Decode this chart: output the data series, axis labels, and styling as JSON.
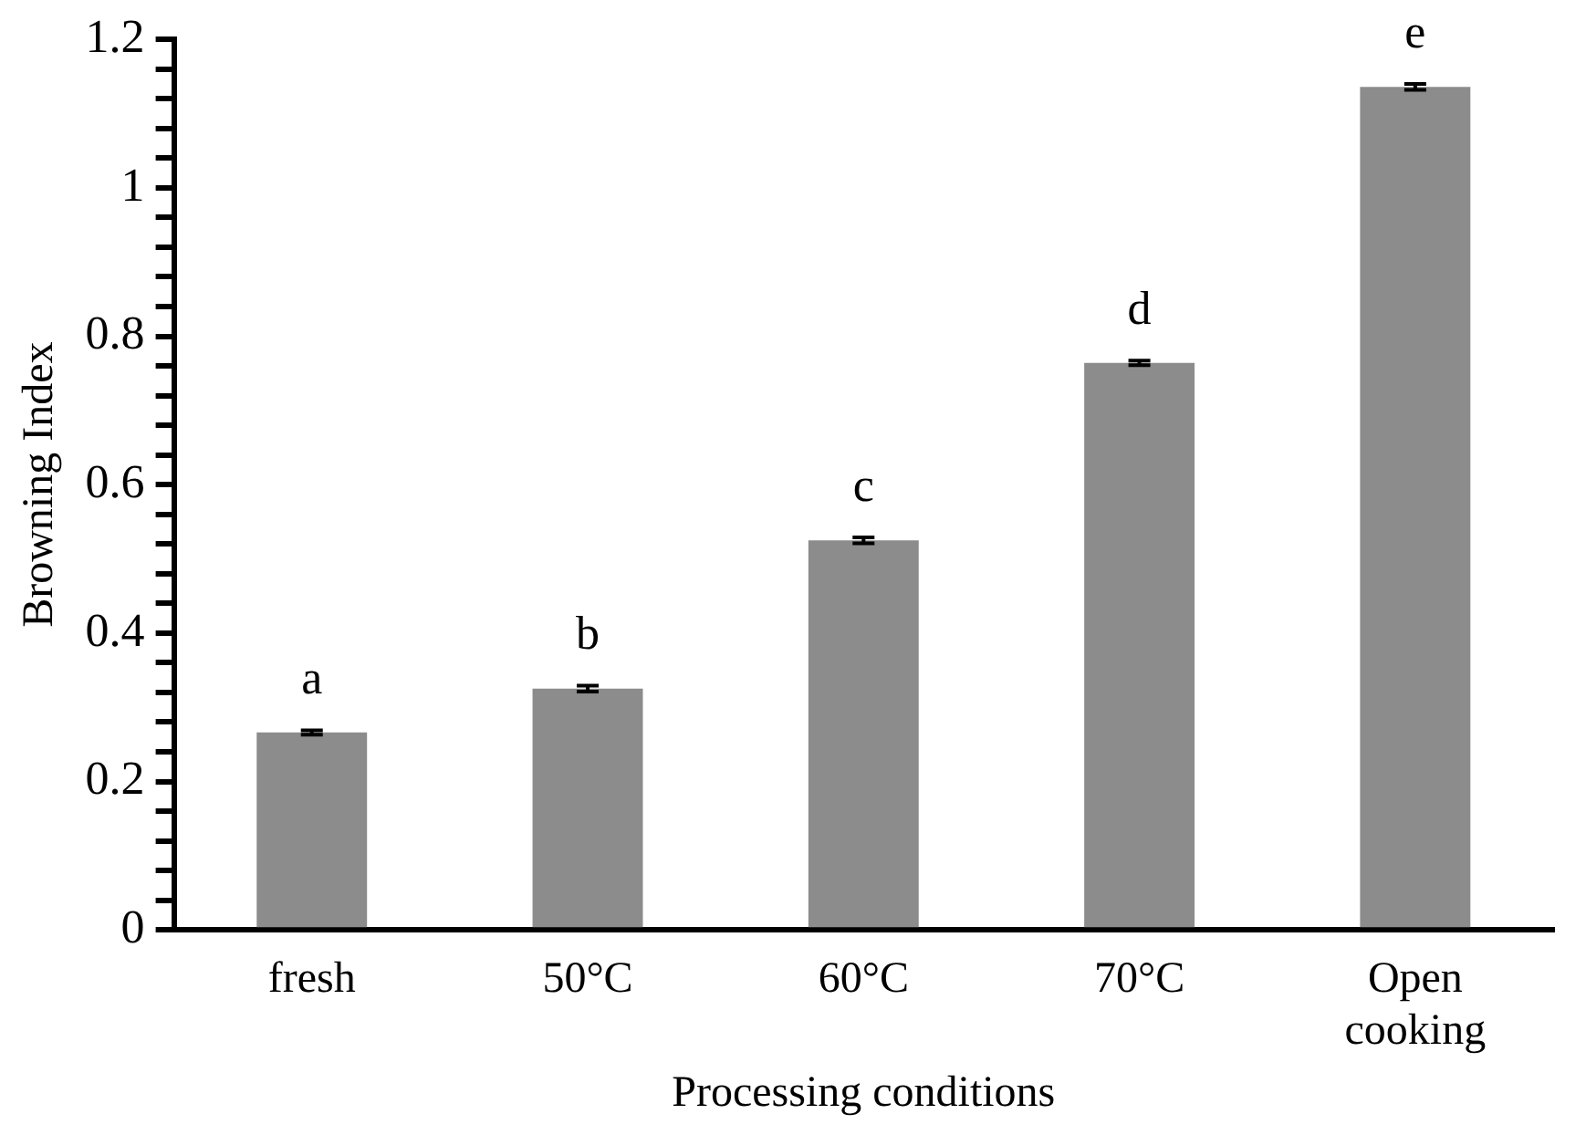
{
  "chart_data": {
    "type": "bar",
    "xlabel": "Processing conditions",
    "ylabel": "Browning Index",
    "categories": [
      "fresh",
      "50°C",
      "60°C",
      "70°C",
      "Open cooking"
    ],
    "values": [
      0.266,
      0.325,
      0.525,
      0.764,
      1.136
    ],
    "errors": [
      0.003,
      0.004,
      0.004,
      0.003,
      0.004
    ],
    "color": "#8c8c8c",
    "ylim": [
      0,
      1.2
    ],
    "yticks": [
      0,
      {
        "value": 0.04,
        "label": null
      },
      {
        "value": 0.08,
        "label": null
      },
      {
        "value": 0.12,
        "label": null
      },
      {
        "value": 0.16,
        "label": null
      },
      0.2,
      {
        "value": 0.24,
        "label": null
      },
      {
        "value": 0.28,
        "label": null
      },
      {
        "value": 0.32,
        "label": null
      },
      {
        "value": 0.36,
        "label": null
      },
      0.4,
      {
        "value": 0.44,
        "label": null
      },
      {
        "value": 0.48,
        "label": null
      },
      {
        "value": 0.52,
        "label": null
      },
      {
        "value": 0.56,
        "label": null
      },
      0.6,
      {
        "value": 0.64,
        "label": null
      },
      {
        "value": 0.68,
        "label": null
      },
      {
        "value": 0.72,
        "label": null
      },
      {
        "value": 0.76,
        "label": null
      },
      0.8,
      {
        "value": 0.84,
        "label": null
      },
      {
        "value": 0.88,
        "label": null
      },
      {
        "value": 0.92,
        "label": null
      },
      {
        "value": 0.96,
        "label": null
      },
      1,
      {
        "value": 1.04,
        "label": null
      },
      {
        "value": 1.08,
        "label": null
      },
      {
        "value": 1.12,
        "label": null
      },
      {
        "value": 1.16,
        "label": null
      },
      1.2
    ],
    "annotations": [
      {
        "text": "a",
        "x": "fresh",
        "y": 0.269
      },
      {
        "text": "b",
        "x": "50°C",
        "y": 0.329
      },
      {
        "text": "c",
        "x": "60°C",
        "y": 0.529
      },
      {
        "text": "d",
        "x": "70°C",
        "y": 0.767
      },
      {
        "text": "e",
        "x": "Open cooking",
        "y": 1.14
      }
    ],
    "grid": false,
    "legend": false
  }
}
